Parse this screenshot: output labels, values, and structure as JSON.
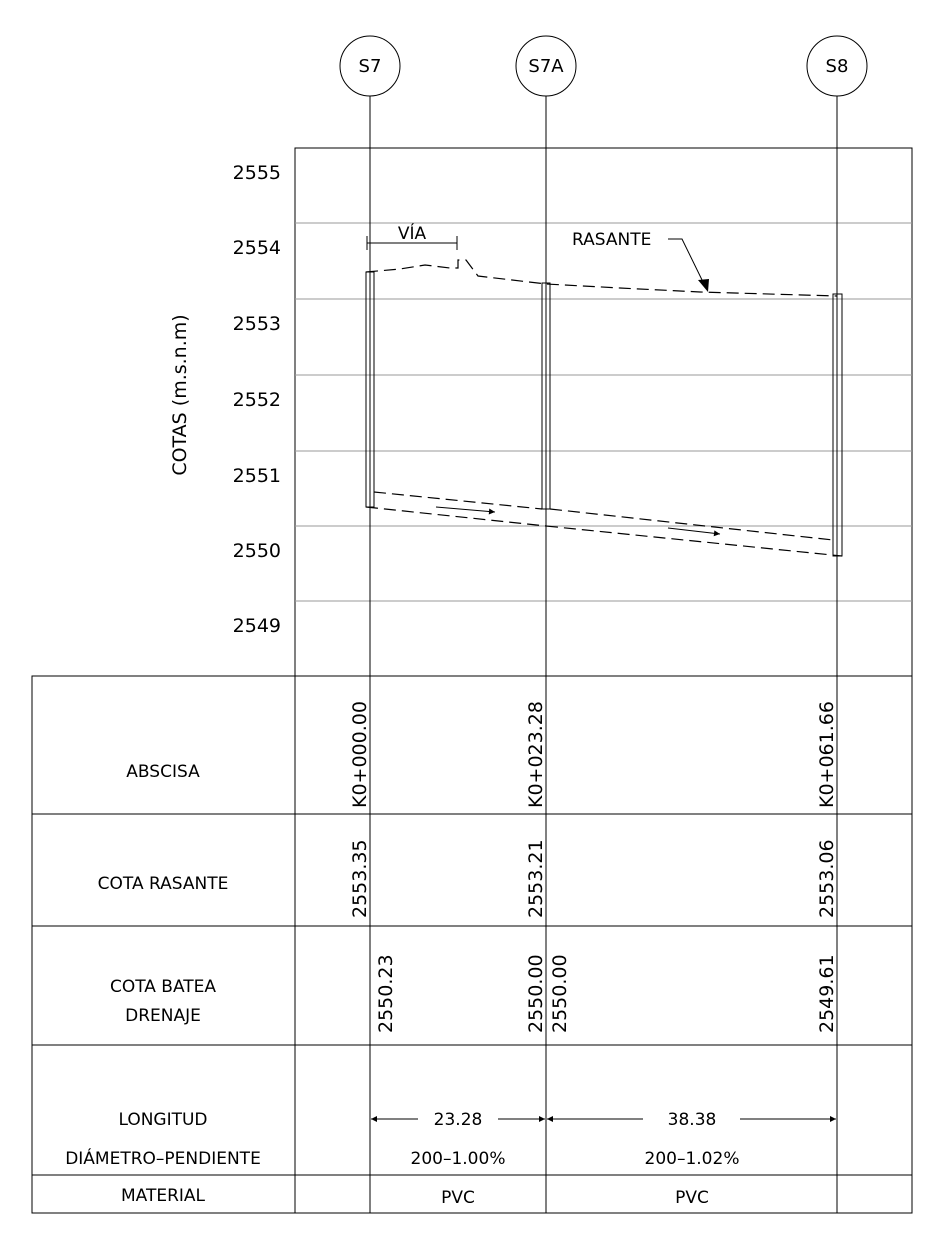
{
  "stations": [
    {
      "id": "S7",
      "abscisa": "K0+000.00",
      "cota_rasante": "2553.35",
      "batea_in": "",
      "batea_out": "2550.23"
    },
    {
      "id": "S7A",
      "abscisa": "K0+023.28",
      "cota_rasante": "2553.21",
      "batea_in": "2550.00",
      "batea_out": "2550.00"
    },
    {
      "id": "S8",
      "abscisa": "K0+061.66",
      "cota_rasante": "2553.06",
      "batea_in": "2549.61",
      "batea_out": ""
    }
  ],
  "axis": {
    "label": "COTAS  (m.s.n.m)",
    "ticks": [
      "2555",
      "2554",
      "2553",
      "2552",
      "2551",
      "2550",
      "2549"
    ]
  },
  "profile_labels": {
    "via": "VÍA",
    "rasante": "RASANTE"
  },
  "table": {
    "rows": {
      "abscisa": "ABSCISA",
      "cota_rasante": "COTA  RASANTE",
      "cota_batea_1": "COTA  BATEA",
      "cota_batea_2": "DRENAJE",
      "longitud": "LONGITUD",
      "diametro": "DIÁMETRO–PENDIENTE",
      "material": "MATERIAL"
    }
  },
  "segments": [
    {
      "longitud": "23.28",
      "diametro_pendiente": "200–1.00%",
      "material": "PVC"
    },
    {
      "longitud": "38.38",
      "diametro_pendiente": "200–1.02%",
      "material": "PVC"
    }
  ]
}
